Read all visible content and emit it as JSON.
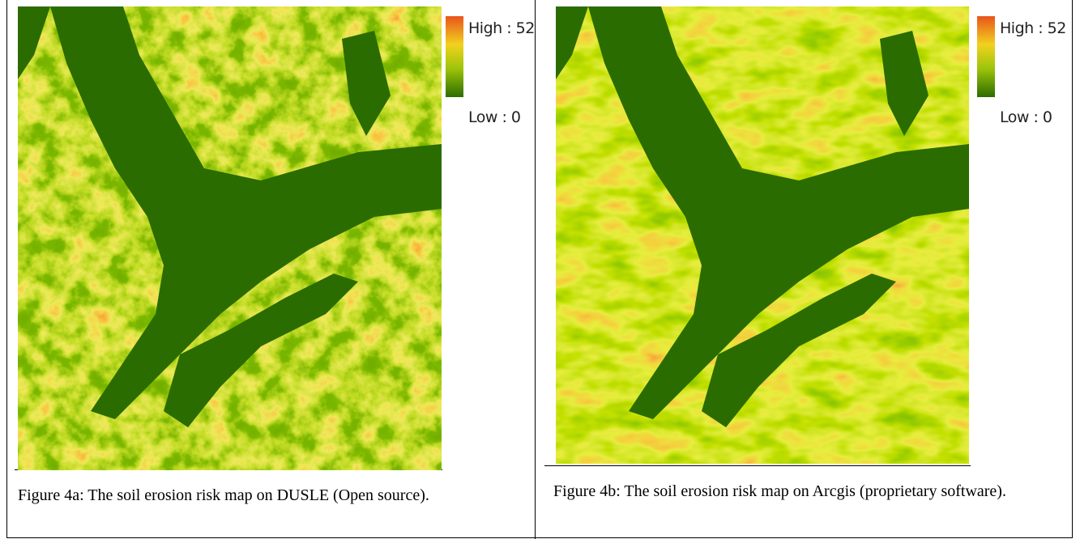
{
  "figures": [
    {
      "legend_high": "High : 52",
      "legend_low": "Low : 0",
      "caption": "Figure 4a: The soil erosion risk map on DUSLE (Open source)."
    },
    {
      "legend_high": "High : 52",
      "legend_low": "Low : 0",
      "caption": "Figure 4b: The soil erosion risk map on Arcgis (proprietary software)."
    }
  ]
}
